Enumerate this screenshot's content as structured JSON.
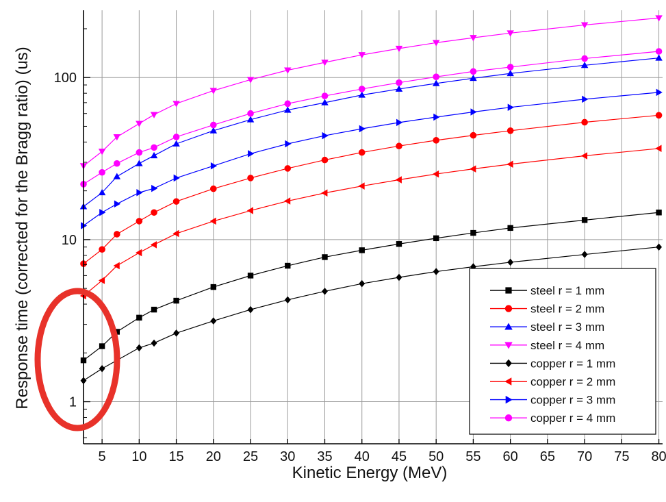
{
  "chart_data": {
    "type": "line",
    "title": "",
    "xlabel": "Kinetic Energy (MeV)",
    "ylabel": "Response time (corrected for the Bragg ratio) (us)",
    "xlim": [
      2.5,
      80.5
    ],
    "ylim": [
      0.55,
      260
    ],
    "yscale": "log",
    "x_ticks": [
      5,
      10,
      15,
      20,
      25,
      30,
      35,
      40,
      45,
      50,
      55,
      60,
      65,
      70,
      75,
      80
    ],
    "y_ticks": [
      1,
      10,
      100
    ],
    "y_tick_labels": [
      "1",
      "10",
      "100"
    ],
    "grid": true,
    "legend_position": "bottom-right",
    "x": [
      2.5,
      5,
      7,
      10,
      12,
      15,
      20,
      25,
      30,
      35,
      40,
      45,
      50,
      55,
      60,
      70,
      80
    ],
    "series": [
      {
        "name": "steel r = 1 mm",
        "color": "#000000",
        "marker": "square",
        "values": [
          1.8,
          2.2,
          2.7,
          3.3,
          3.7,
          4.2,
          5.1,
          6.0,
          6.9,
          7.8,
          8.6,
          9.4,
          10.2,
          11.0,
          11.8,
          13.2,
          14.7
        ]
      },
      {
        "name": "steel r = 2 mm",
        "color": "#ff0000",
        "marker": "circle",
        "values": [
          7.1,
          8.7,
          10.8,
          13.0,
          14.7,
          17.2,
          20.6,
          24.0,
          27.5,
          31.0,
          34.5,
          37.8,
          41.0,
          44.0,
          47.0,
          53.0,
          58.5
        ]
      },
      {
        "name": "steel r = 3 mm",
        "color": "#0000ff",
        "marker": "triangle-up",
        "values": [
          16.0,
          19.5,
          24.5,
          29.5,
          33.0,
          39.0,
          47.0,
          55.0,
          63.0,
          70.0,
          78.0,
          85.0,
          92.0,
          99.0,
          106.0,
          119.0,
          132.0
        ]
      },
      {
        "name": "steel r = 4 mm",
        "color": "#ff00ff",
        "marker": "triangle-down",
        "values": [
          28.5,
          35.0,
          43.0,
          52.0,
          59.0,
          69.0,
          83.0,
          97.0,
          111.0,
          124.0,
          138.0,
          151.0,
          164.0,
          176.0,
          188.0,
          211.0,
          233.0
        ]
      },
      {
        "name": "copper r = 1 mm",
        "color": "#000000",
        "marker": "diamond",
        "values": [
          1.35,
          1.6,
          1.8,
          2.15,
          2.3,
          2.65,
          3.15,
          3.7,
          4.25,
          4.8,
          5.35,
          5.85,
          6.35,
          6.8,
          7.25,
          8.1,
          9.0
        ]
      },
      {
        "name": "copper r = 2 mm",
        "color": "#ff0000",
        "marker": "triangle-left",
        "values": [
          4.5,
          5.6,
          6.9,
          8.3,
          9.3,
          10.9,
          13.0,
          15.1,
          17.3,
          19.4,
          21.4,
          23.4,
          25.4,
          27.3,
          29.2,
          32.9,
          36.5
        ]
      },
      {
        "name": "copper r = 3 mm",
        "color": "#0000ff",
        "marker": "triangle-right",
        "values": [
          12.2,
          14.7,
          16.6,
          19.5,
          20.7,
          24.0,
          28.5,
          33.9,
          39.0,
          43.8,
          48.3,
          52.8,
          57.0,
          61.3,
          65.5,
          73.5,
          81.0
        ]
      },
      {
        "name": "copper r = 4 mm",
        "color": "#ff00ff",
        "marker": "circle",
        "values": [
          22.0,
          26.0,
          29.5,
          34.5,
          37.0,
          43.0,
          51.0,
          60.0,
          69.0,
          77.0,
          85.0,
          93.0,
          101.0,
          109.0,
          116.0,
          131.0,
          145.0
        ]
      }
    ],
    "annotations": [
      {
        "type": "ellipse",
        "color": "#e8322a",
        "x_center": 4.0,
        "y_center": 1.85,
        "description": "highlight"
      }
    ]
  }
}
